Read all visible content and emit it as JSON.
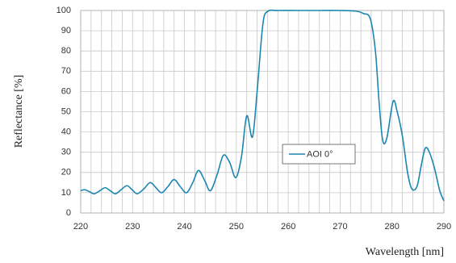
{
  "chart_data": {
    "type": "line",
    "x_label": "Wavelength [nm]",
    "y_label": "Reflectance [%]",
    "x": [
      220,
      220.8,
      221.7,
      222.6,
      223.7,
      224.7,
      225.7,
      226.7,
      227.8,
      228.9,
      229.9,
      230.9,
      232.2,
      233.4,
      234.5,
      235.6,
      236.8,
      238,
      239.2,
      240.4,
      241.6,
      242.7,
      243.9,
      245,
      246.3,
      247.5,
      248.7,
      249.9,
      251,
      252,
      253.1,
      254,
      255.1,
      256,
      258,
      262,
      266,
      270,
      273,
      274.5,
      275.8,
      276.8,
      277.5,
      278.2,
      279,
      280.2,
      281,
      282,
      283,
      283.8,
      284.8,
      285.6,
      286.4,
      287.2,
      288.2,
      289.2,
      290
    ],
    "series": [
      {
        "name": "AOI 0°",
        "color": "#1b86b0",
        "values": [
          11,
          11.5,
          10.5,
          9.5,
          11,
          12.5,
          11,
          9.5,
          11.5,
          13.5,
          11.5,
          9.5,
          12,
          15,
          12.5,
          10,
          13,
          16.5,
          13,
          10,
          15,
          21,
          16,
          11,
          19,
          28.5,
          25,
          17.5,
          28,
          48,
          37.5,
          60,
          93,
          99.5,
          100,
          100,
          100,
          100,
          99.7,
          98.5,
          96,
          80,
          55,
          36,
          37,
          55,
          50,
          38,
          20,
          12,
          13,
          23,
          32,
          30,
          22,
          11,
          6
        ]
      }
    ],
    "xlim": [
      220,
      290
    ],
    "xticks": [
      220,
      230,
      240,
      250,
      260,
      270,
      280,
      290
    ],
    "xgrid": [
      220,
      222,
      224,
      226,
      228,
      230,
      232,
      234,
      236,
      238,
      240,
      242,
      244,
      246,
      248,
      250,
      252,
      254,
      256,
      258,
      260,
      262,
      264,
      266,
      268,
      270,
      272,
      274,
      276,
      278,
      280,
      282,
      284,
      286,
      288,
      290
    ],
    "ylim": [
      0,
      100
    ],
    "yticks": [
      0,
      10,
      20,
      30,
      40,
      50,
      60,
      70,
      80,
      90,
      100
    ],
    "grid": true,
    "legend": "center"
  }
}
